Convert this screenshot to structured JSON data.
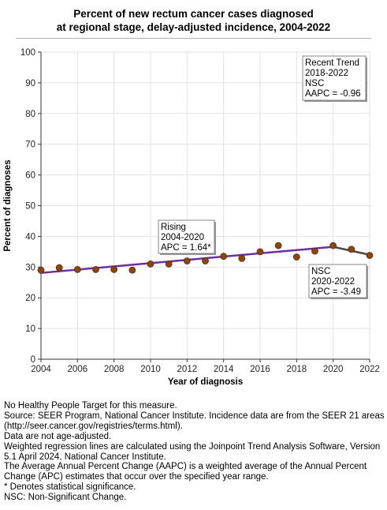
{
  "title_line1": "Percent of new rectum cancer cases diagnosed",
  "title_line2": "at regional stage, delay-adjusted incidence, 2004-2022",
  "chart_data": {
    "type": "scatter",
    "xlabel": "Year of diagnosis",
    "ylabel": "Percent of diagnoses",
    "xlim": [
      2004,
      2022
    ],
    "ylim": [
      0,
      100
    ],
    "xticks": [
      2004,
      2006,
      2008,
      2010,
      2012,
      2014,
      2016,
      2018,
      2020,
      2022
    ],
    "yticks": [
      0,
      10,
      20,
      30,
      40,
      50,
      60,
      70,
      80,
      90,
      100
    ],
    "grid": true,
    "points": {
      "x": [
        2004,
        2005,
        2006,
        2007,
        2008,
        2009,
        2010,
        2011,
        2012,
        2013,
        2014,
        2015,
        2016,
        2017,
        2018,
        2019,
        2020,
        2021,
        2022
      ],
      "y": [
        29.0,
        29.8,
        29.2,
        29.2,
        29.2,
        29.0,
        31.0,
        31.0,
        32.0,
        32.0,
        33.5,
        32.8,
        35.0,
        37.0,
        33.3,
        35.2,
        37.0,
        35.8,
        33.8
      ]
    },
    "trend_segments": [
      {
        "x": [
          2004,
          2020
        ],
        "y": [
          28.1,
          36.6
        ],
        "color": "#6a2fa0"
      },
      {
        "x": [
          2020,
          2022
        ],
        "y": [
          36.6,
          34.0
        ],
        "color": "#4a4a4a"
      }
    ],
    "point_color": "#8b4513",
    "annotations": [
      {
        "lines": [
          "Recent Trend",
          "2018-2022",
          "NSC",
          "AAPC = -0.96"
        ]
      },
      {
        "lines": [
          "Rising",
          "2004-2020",
          "APC =  1.64*"
        ]
      },
      {
        "lines": [
          "NSC",
          "2020-2022",
          "APC = -3.49"
        ]
      }
    ]
  },
  "notes": [
    "No Healthy People Target for this measure.",
    "Source: SEER Program, National Cancer Institute. Incidence data are from the SEER 21 areas (http://seer.cancer.gov/registries/terms.html).",
    "Data are not age-adjusted.",
    "Weighted regression lines are calculated using the Joinpoint Trend Analysis Software, Version 5.1 April 2024, National Cancer Institute.",
    "The Average Annual Percent Change (AAPC) is a weighted average of the Annual Percent Change (APC) estimates that occur over the specified year range.",
    "* Denotes statistical significance.",
    "NSC: Non-Significant Change."
  ]
}
